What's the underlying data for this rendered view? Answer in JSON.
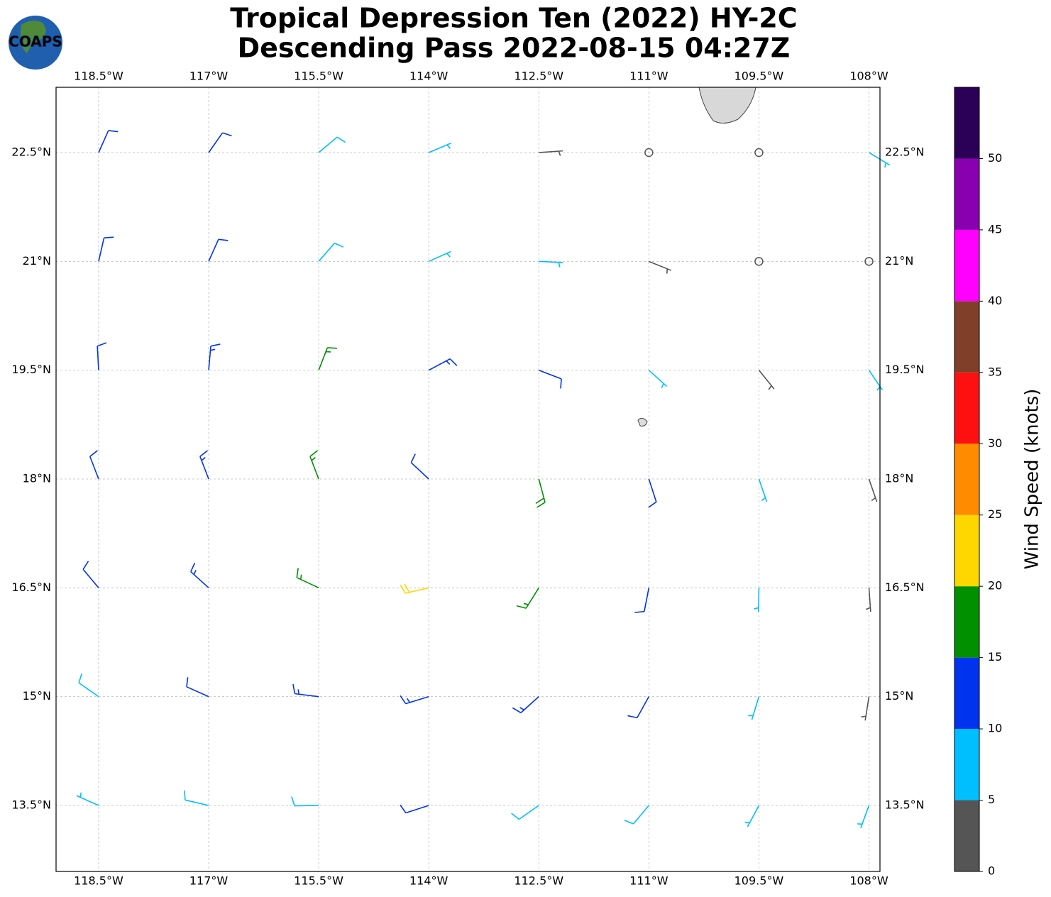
{
  "chart_data": {
    "type": "barbs",
    "title": [
      "Tropical Depression Ten (2022) HY-2C",
      "Descending Pass 2022-08-15 04:27Z"
    ],
    "logo": "COAPS",
    "xlim": [
      -119.08,
      -107.85
    ],
    "ylim": [
      12.59,
      23.4
    ],
    "xticks": [
      {
        "value": -118.5,
        "label": "118.5°W"
      },
      {
        "value": -117,
        "label": "117°W"
      },
      {
        "value": -115.5,
        "label": "115.5°W"
      },
      {
        "value": -114,
        "label": "114°W"
      },
      {
        "value": -112.5,
        "label": "112.5°W"
      },
      {
        "value": -111,
        "label": "111°W"
      },
      {
        "value": -109.5,
        "label": "109.5°W"
      },
      {
        "value": -108,
        "label": "108°W"
      }
    ],
    "yticks": [
      {
        "value": 13.5,
        "label": "13.5°N"
      },
      {
        "value": 15,
        "label": "15°N"
      },
      {
        "value": 16.5,
        "label": "16.5°N"
      },
      {
        "value": 18,
        "label": "18°N"
      },
      {
        "value": 19.5,
        "label": "19.5°N"
      },
      {
        "value": 21,
        "label": "21°N"
      },
      {
        "value": 22.5,
        "label": "22.5°N"
      }
    ],
    "grid": true,
    "colorbar": {
      "label": "Wind Speed (knots)",
      "lim": [
        0,
        55
      ],
      "ticks": [
        0,
        5,
        10,
        15,
        20,
        25,
        30,
        35,
        40,
        45,
        50
      ],
      "colors": [
        "#555555",
        "#00bfff",
        "#0033ee",
        "#009000",
        "#ffd700",
        "#ff8c00",
        "#ff1010",
        "#7f3f28",
        "#ff00ff",
        "#8800b0",
        "#2b0057"
      ]
    },
    "points": [
      {
        "lon": -118.5,
        "lat": 22.5,
        "speed": 12,
        "direction": 24
      },
      {
        "lon": -117,
        "lat": 22.5,
        "speed": 11,
        "direction": 35
      },
      {
        "lon": -115.5,
        "lat": 22.5,
        "speed": 8,
        "direction": 50
      },
      {
        "lon": -114,
        "lat": 22.5,
        "speed": 6,
        "direction": 67
      },
      {
        "lon": -112.5,
        "lat": 22.5,
        "speed": 4,
        "direction": 86
      },
      {
        "lon": -111,
        "lat": 22.5,
        "speed": 2,
        "direction": 101
      },
      {
        "lon": -109.5,
        "lat": 22.5,
        "speed": 2,
        "direction": 113
      },
      {
        "lon": -108,
        "lat": 22.5,
        "speed": 7,
        "direction": 121
      },
      {
        "lon": -118.5,
        "lat": 21,
        "speed": 12,
        "direction": 13
      },
      {
        "lon": -117,
        "lat": 21,
        "speed": 12,
        "direction": 24
      },
      {
        "lon": -115.5,
        "lat": 21,
        "speed": 9,
        "direction": 41
      },
      {
        "lon": -114,
        "lat": 21,
        "speed": 7,
        "direction": 66
      },
      {
        "lon": -112.5,
        "lat": 21,
        "speed": 6,
        "direction": 93
      },
      {
        "lon": -111,
        "lat": 21,
        "speed": 4,
        "direction": 112
      },
      {
        "lon": -109.5,
        "lat": 21,
        "speed": 1,
        "direction": 125
      },
      {
        "lon": -108,
        "lat": 21,
        "speed": 1,
        "direction": 132
      },
      {
        "lon": -118.5,
        "lat": 19.5,
        "speed": 12,
        "direction": 357
      },
      {
        "lon": -117,
        "lat": 19.5,
        "speed": 13,
        "direction": 5
      },
      {
        "lon": -115.5,
        "lat": 19.5,
        "speed": 17,
        "direction": 21
      },
      {
        "lon": -114,
        "lat": 19.5,
        "speed": 13,
        "direction": 62
      },
      {
        "lon": -112.5,
        "lat": 19.5,
        "speed": 11,
        "direction": 111
      },
      {
        "lon": -111,
        "lat": 19.5,
        "speed": 7,
        "direction": 132
      },
      {
        "lon": -109.5,
        "lat": 19.5,
        "speed": 4,
        "direction": 141
      },
      {
        "lon": -108,
        "lat": 19.5,
        "speed": 6,
        "direction": 146
      },
      {
        "lon": -118.5,
        "lat": 18,
        "speed": 12,
        "direction": 339
      },
      {
        "lon": -117,
        "lat": 18,
        "speed": 13,
        "direction": 339
      },
      {
        "lon": -115.5,
        "lat": 18,
        "speed": 16,
        "direction": 339
      },
      {
        "lon": -114,
        "lat": 18,
        "speed": 12,
        "direction": 313
      },
      {
        "lon": -112.5,
        "lat": 18,
        "speed": 18,
        "direction": 165
      },
      {
        "lon": -111,
        "lat": 18,
        "speed": 11,
        "direction": 162
      },
      {
        "lon": -109.5,
        "lat": 18,
        "speed": 7,
        "direction": 161
      },
      {
        "lon": -108,
        "lat": 18,
        "speed": 4,
        "direction": 161
      },
      {
        "lon": -118.5,
        "lat": 16.5,
        "speed": 11,
        "direction": 320
      },
      {
        "lon": -117,
        "lat": 16.5,
        "speed": 13,
        "direction": 312
      },
      {
        "lon": -115.5,
        "lat": 16.5,
        "speed": 17,
        "direction": 295
      },
      {
        "lon": -114,
        "lat": 16.5,
        "speed": 22,
        "direction": 257
      },
      {
        "lon": -112.5,
        "lat": 16.5,
        "speed": 16,
        "direction": 212
      },
      {
        "lon": -111,
        "lat": 16.5,
        "speed": 12,
        "direction": 191
      },
      {
        "lon": -109.5,
        "lat": 16.5,
        "speed": 7,
        "direction": 181
      },
      {
        "lon": -108,
        "lat": 16.5,
        "speed": 4,
        "direction": 176
      },
      {
        "lon": -118.5,
        "lat": 15,
        "speed": 9,
        "direction": 305
      },
      {
        "lon": -117,
        "lat": 15,
        "speed": 11,
        "direction": 294
      },
      {
        "lon": -115.5,
        "lat": 15,
        "speed": 13,
        "direction": 277
      },
      {
        "lon": -114,
        "lat": 15,
        "speed": 14,
        "direction": 253
      },
      {
        "lon": -112.5,
        "lat": 15,
        "speed": 13,
        "direction": 228
      },
      {
        "lon": -111,
        "lat": 15,
        "speed": 10,
        "direction": 209
      },
      {
        "lon": -109.5,
        "lat": 15,
        "speed": 7,
        "direction": 197
      },
      {
        "lon": -108,
        "lat": 15,
        "speed": 4,
        "direction": 189
      },
      {
        "lon": -118.5,
        "lat": 13.5,
        "speed": 7,
        "direction": 294
      },
      {
        "lon": -117,
        "lat": 13.5,
        "speed": 8,
        "direction": 283
      },
      {
        "lon": -115.5,
        "lat": 13.5,
        "speed": 9,
        "direction": 269
      },
      {
        "lon": -114,
        "lat": 13.5,
        "speed": 10,
        "direction": 252
      },
      {
        "lon": -112.5,
        "lat": 13.5,
        "speed": 9,
        "direction": 235
      },
      {
        "lon": -111,
        "lat": 13.5,
        "speed": 8,
        "direction": 220
      },
      {
        "lon": -109.5,
        "lat": 13.5,
        "speed": 7,
        "direction": 208
      },
      {
        "lon": -108,
        "lat": 13.5,
        "speed": 6,
        "direction": 200
      }
    ]
  }
}
